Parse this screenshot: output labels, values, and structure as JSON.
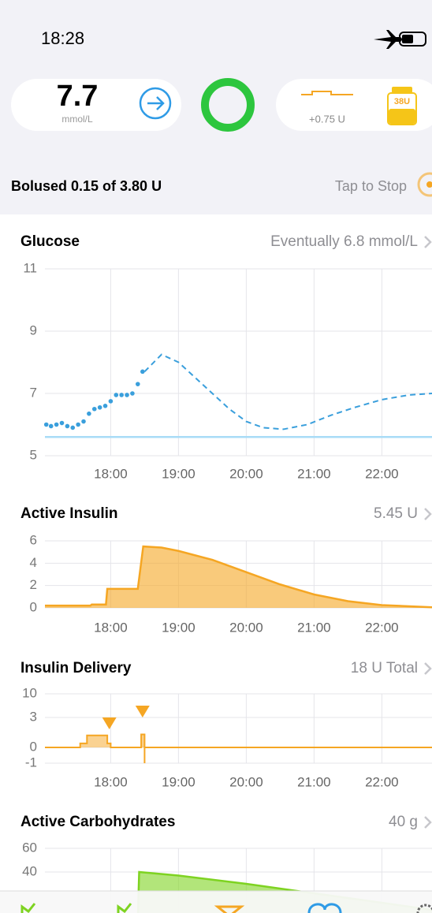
{
  "status": {
    "time": "18:28"
  },
  "hud": {
    "glucose": "7.7",
    "unit": "mmol/L",
    "basal": "+0.75 U",
    "reservoir": "38U"
  },
  "bolus": {
    "text": "Bolused 0.15 of 3.80 U",
    "action": "Tap to Stop"
  },
  "time_axis": {
    "xlim": [
      17.03,
      22.74
    ],
    "xticks": [
      {
        "value": 18,
        "label": "18:00"
      },
      {
        "value": 19,
        "label": "19:00"
      },
      {
        "value": 20,
        "label": "20:00"
      },
      {
        "value": 21,
        "label": "21:00"
      },
      {
        "value": 22,
        "label": "22:00"
      }
    ]
  },
  "charts": [
    {
      "type": "glucose",
      "title": "Glucose",
      "summary": "Eventually 6.8 mmol/L",
      "color": "#3a9fdc",
      "ylim": [
        5,
        11
      ],
      "yticks": [
        5,
        7,
        9,
        11
      ],
      "target": 5.6,
      "series": [
        {
          "x": [
            17.05,
            17.12,
            17.2,
            17.28,
            17.36,
            17.44,
            17.52,
            17.6,
            17.68,
            17.76,
            17.84,
            17.92,
            18.0,
            18.08,
            18.16,
            18.24,
            18.32,
            18.4,
            18.47
          ],
          "values": [
            6.0,
            5.95,
            6.0,
            6.05,
            5.95,
            5.9,
            6.0,
            6.1,
            6.35,
            6.5,
            6.55,
            6.6,
            6.75,
            6.95,
            6.95,
            6.95,
            7.0,
            7.3,
            7.7
          ]
        },
        {
          "x": [
            18.5,
            18.75,
            19.0,
            19.25,
            19.5,
            19.75,
            20.0,
            20.25,
            20.55,
            20.9,
            21.25,
            21.6,
            22.0,
            22.4,
            22.74
          ],
          "values": [
            7.7,
            8.25,
            8.0,
            7.5,
            7.0,
            6.5,
            6.1,
            5.9,
            5.85,
            6.0,
            6.3,
            6.55,
            6.8,
            6.95,
            7.0
          ]
        }
      ]
    },
    {
      "type": "area",
      "title": "Active Insulin",
      "summary": "5.45 U",
      "color": "#f5a623",
      "ylim": [
        0,
        6
      ],
      "yticks": [
        0,
        2,
        4,
        6
      ],
      "x": [
        17.03,
        17.7,
        17.72,
        17.93,
        17.95,
        18.4,
        18.48,
        18.75,
        19.0,
        19.5,
        20.0,
        20.5,
        21.0,
        21.5,
        22.0,
        22.74
      ],
      "values": [
        0.2,
        0.2,
        0.3,
        0.3,
        1.7,
        1.7,
        5.5,
        5.4,
        5.1,
        4.3,
        3.2,
        2.1,
        1.2,
        0.6,
        0.25,
        0.05
      ]
    },
    {
      "type": "step",
      "title": "Insulin Delivery",
      "summary": "18 U Total",
      "color": "#f5a623",
      "ylim": [
        -1,
        10
      ],
      "yticks": [
        -1,
        0,
        3,
        10
      ],
      "x": [
        17.03,
        17.55,
        17.55,
        17.65,
        17.65,
        17.95,
        17.95,
        18.0,
        18.0,
        18.45,
        18.45,
        18.5,
        18.5,
        18.5,
        18.5,
        22.74
      ],
      "values": [
        0,
        0,
        0.4,
        0.4,
        1.2,
        1.2,
        0.4,
        0.4,
        0,
        0,
        1.3,
        1.3,
        0,
        -1,
        0,
        0
      ],
      "boluses": [
        17.98,
        18.47
      ]
    },
    {
      "type": "area",
      "title": "Active Carbohydrates",
      "summary": "40 g",
      "color": "#7ed321",
      "ylim": [
        0,
        60
      ],
      "yticks": [
        40,
        60
      ],
      "x": [
        18.4,
        18.42,
        19.0,
        20.0,
        21.0,
        22.0,
        22.74
      ],
      "values": [
        0,
        40,
        37,
        30,
        22,
        14,
        8
      ]
    }
  ]
}
